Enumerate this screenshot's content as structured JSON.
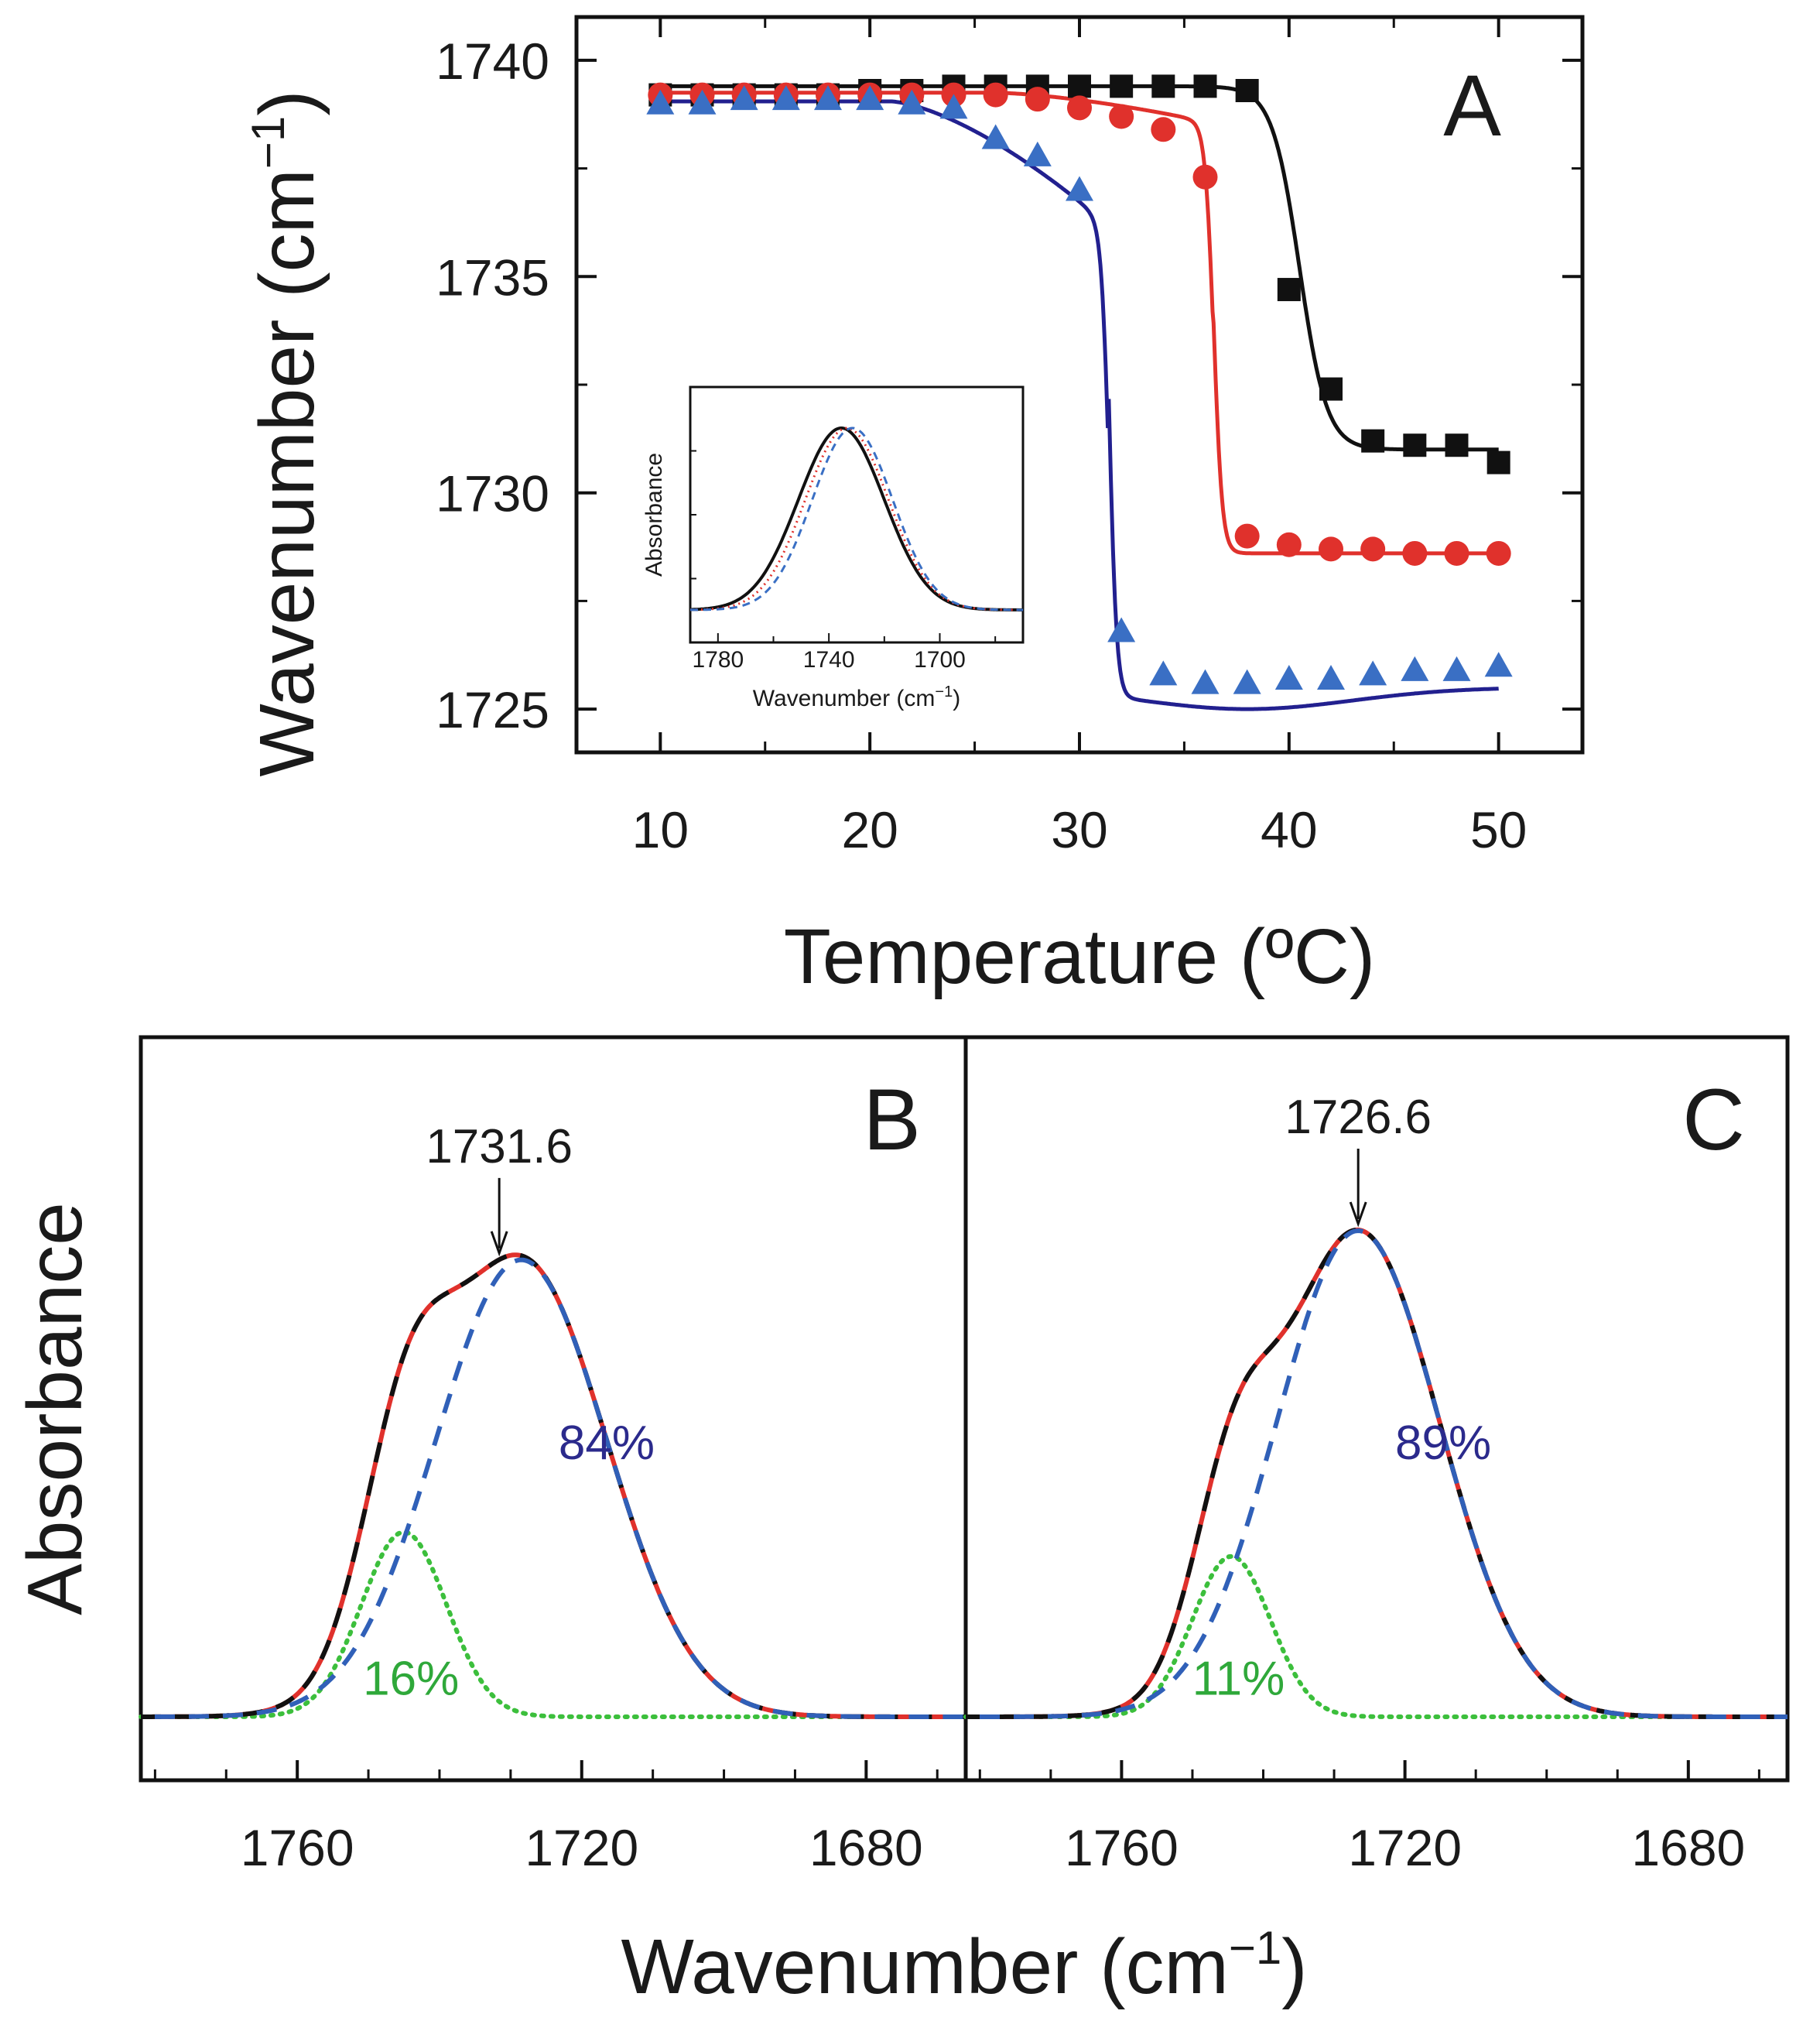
{
  "colors": {
    "black": "#111111",
    "red": "#e0312c",
    "blue_fit": "#22208f",
    "blue_marker": "#3a6fc4",
    "green": "#3cbf3c",
    "component_blue": "#3060b8",
    "annot_blue": "#2b2a8c",
    "annot_green": "#2fa83a"
  },
  "chart_data": [
    {
      "panel": "A",
      "type": "scatter",
      "title": "A",
      "xlabel": "Temperature (ºC)",
      "ylabel": "Wavenumber (cm",
      "ylabel_sup": "−1",
      "ylabel_close": ")",
      "xlim": [
        6,
        54
      ],
      "ylim": [
        1724,
        1741
      ],
      "xticks": [
        10,
        20,
        30,
        40,
        50
      ],
      "yticks": [
        1725,
        1730,
        1735,
        1740
      ],
      "series": [
        {
          "name": "black squares",
          "marker": "square",
          "color": "black",
          "x": [
            10,
            12,
            14,
            16,
            18,
            20,
            22,
            24,
            26,
            28,
            30,
            32,
            34,
            36,
            38,
            40,
            42,
            44,
            46,
            48,
            50
          ],
          "y": [
            1739.2,
            1739.2,
            1739.2,
            1739.2,
            1739.2,
            1739.3,
            1739.3,
            1739.4,
            1739.4,
            1739.4,
            1739.4,
            1739.4,
            1739.4,
            1739.4,
            1739.3,
            1734.7,
            1732.4,
            1731.2,
            1731.1,
            1731.1,
            1730.7
          ],
          "fit": {
            "top": 1739.4,
            "bottom": 1731.0,
            "mid": 40.5,
            "width": 0.65
          }
        },
        {
          "name": "red circles",
          "marker": "circle",
          "color": "red",
          "x": [
            10,
            12,
            14,
            16,
            18,
            20,
            22,
            24,
            26,
            28,
            30,
            32,
            34,
            36,
            38,
            40,
            42,
            44,
            46,
            48,
            50
          ],
          "y": [
            1739.2,
            1739.2,
            1739.2,
            1739.2,
            1739.2,
            1739.2,
            1739.2,
            1739.2,
            1739.2,
            1739.1,
            1738.9,
            1738.7,
            1738.4,
            1737.3,
            1729.0,
            1728.8,
            1728.7,
            1728.7,
            1728.6,
            1728.6,
            1728.6
          ],
          "fit": {
            "top": 1739.25,
            "bottom": 1728.6,
            "mid": 36.4,
            "width": 0.2,
            "pre_slope": 0.04,
            "pre_start": 26,
            "post_tail": 0.5
          }
        },
        {
          "name": "blue triangles",
          "marker": "triangle",
          "color": "blue_marker",
          "x": [
            10,
            12,
            14,
            16,
            18,
            20,
            22,
            24,
            26,
            28,
            30,
            32,
            34,
            36,
            38,
            40,
            42,
            44,
            46,
            48,
            50
          ],
          "y": [
            1739.0,
            1739.0,
            1739.1,
            1739.1,
            1739.1,
            1739.1,
            1739.0,
            1738.9,
            1738.2,
            1737.8,
            1737.0,
            1726.8,
            1725.8,
            1725.6,
            1725.6,
            1725.7,
            1725.7,
            1725.8,
            1725.9,
            1725.9,
            1726.0
          ],
          "fit": {
            "top": 1739.05,
            "bottom": 1725.5,
            "mid": 31.4,
            "width": 0.18,
            "pre_slope": 0.22,
            "pre_start": 21,
            "dip": 0.5
          }
        }
      ],
      "inset": {
        "type": "line",
        "xlabel": "Wavenumber (cm",
        "xlabel_sup": "−1",
        "xlabel_close": ")",
        "ylabel": "Absorbance",
        "xlim": [
          1790,
          1670
        ],
        "xticks": [
          1780,
          1740,
          1700
        ],
        "series": [
          {
            "name": "black solid",
            "color": "black",
            "style": "solid",
            "center": 1735.5,
            "sigma": 15.5
          },
          {
            "name": "red dotted",
            "color": "red",
            "style": "dotted",
            "center": 1733.5,
            "sigma": 15.0
          },
          {
            "name": "blue dashed",
            "color": "blue_marker",
            "style": "dashed",
            "center": 1731.5,
            "sigma": 14.5
          }
        ]
      }
    },
    {
      "panel": "B",
      "type": "line",
      "title": "B",
      "xlim": [
        1782,
        1666
      ],
      "xticks": [
        1760,
        1720,
        1680
      ],
      "peak_label": "1731.6",
      "peak_x": 1731.6,
      "components": [
        {
          "name": "16%",
          "center": 1745.0,
          "sigma": 6.0,
          "amp": 0.38
        },
        {
          "name": "84%",
          "center": 1728.5,
          "sigma": 12.0,
          "amp": 0.94
        }
      ],
      "labels": {
        "major": "84%",
        "minor": "16%"
      }
    },
    {
      "panel": "C",
      "type": "line",
      "title": "C",
      "xlim": [
        1782,
        1666
      ],
      "xticks": [
        1760,
        1720,
        1680
      ],
      "peak_label": "1726.6",
      "peak_x": 1726.6,
      "components": [
        {
          "name": "11%",
          "center": 1744.5,
          "sigma": 5.5,
          "amp": 0.33
        },
        {
          "name": "89%",
          "center": 1726.6,
          "sigma": 11.5,
          "amp": 1.0
        }
      ],
      "labels": {
        "major": "89%",
        "minor": "11%"
      }
    }
  ],
  "shared": {
    "bc_xlabel": "Wavenumber (cm",
    "bc_xlabel_sup": "−1",
    "bc_xlabel_close": ")",
    "bc_ylabel": "Absorbance"
  }
}
